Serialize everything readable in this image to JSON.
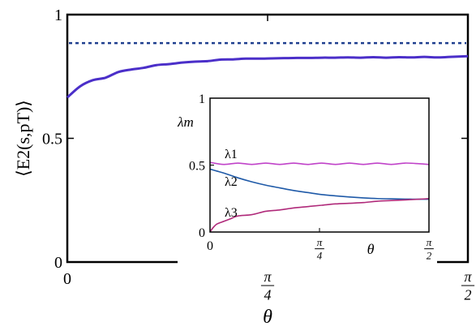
{
  "chart_data": [
    {
      "type": "line",
      "xlabel": "θ",
      "ylabel": "⟨E2(s,pT)⟩",
      "xlim": [
        0,
        1.5708
      ],
      "ylim": [
        0,
        1
      ],
      "xticks": [
        {
          "value": 0,
          "label": "0"
        },
        {
          "value": 0.7854,
          "num": "π",
          "den": "4"
        },
        {
          "value": 1.5708,
          "num": "π",
          "den": "2"
        }
      ],
      "yticks": [
        {
          "value": 0,
          "label": "0"
        },
        {
          "value": 0.5,
          "label": "0.5"
        },
        {
          "value": 1,
          "label": "1"
        }
      ],
      "reference_line": {
        "y": 0.885,
        "style": "dashed",
        "color": "#1f3f8f"
      },
      "series": [
        {
          "color": "#4b2fc9",
          "x": [
            0,
            0.05,
            0.1,
            0.15,
            0.2,
            0.25,
            0.3,
            0.35,
            0.4,
            0.45,
            0.5,
            0.55,
            0.6,
            0.65,
            0.7,
            0.75,
            0.8,
            0.85,
            0.9,
            0.95,
            1.0,
            1.05,
            1.1,
            1.15,
            1.2,
            1.25,
            1.3,
            1.35,
            1.4,
            1.45,
            1.5,
            1.5708
          ],
          "y": [
            0.665,
            0.71,
            0.735,
            0.745,
            0.768,
            0.778,
            0.785,
            0.796,
            0.8,
            0.806,
            0.81,
            0.812,
            0.818,
            0.819,
            0.822,
            0.822,
            0.823,
            0.824,
            0.825,
            0.825,
            0.826,
            0.826,
            0.827,
            0.826,
            0.828,
            0.826,
            0.828,
            0.827,
            0.829,
            0.827,
            0.829,
            0.832
          ]
        }
      ]
    },
    {
      "type": "line",
      "xlabel": "θ",
      "ylabel": "λm",
      "xlim": [
        0,
        1.5708
      ],
      "ylim": [
        0,
        1
      ],
      "xticks": [
        {
          "value": 0,
          "label": "0"
        },
        {
          "value": 0.7854,
          "num": "π",
          "den": "4"
        },
        {
          "value": 1.5708,
          "num": "π",
          "den": "2"
        }
      ],
      "yticks": [
        {
          "value": 0,
          "label": "0"
        },
        {
          "value": 0.5,
          "label": "0.5"
        },
        {
          "value": 1,
          "label": "1"
        }
      ],
      "series": [
        {
          "name": "λ1",
          "color": "#c043c9",
          "x": [
            0,
            0.1,
            0.2,
            0.3,
            0.4,
            0.5,
            0.6,
            0.7,
            0.8,
            0.9,
            1.0,
            1.1,
            1.2,
            1.3,
            1.4,
            1.5,
            1.5708
          ],
          "y": [
            0.52,
            0.505,
            0.515,
            0.505,
            0.515,
            0.505,
            0.515,
            0.505,
            0.515,
            0.505,
            0.515,
            0.505,
            0.515,
            0.505,
            0.515,
            0.51,
            0.505
          ]
        },
        {
          "name": "λ2",
          "color": "#1f5aa8",
          "x": [
            0,
            0.05,
            0.1,
            0.2,
            0.3,
            0.4,
            0.5,
            0.6,
            0.7,
            0.8,
            0.9,
            1.0,
            1.1,
            1.2,
            1.3,
            1.4,
            1.5,
            1.5708
          ],
          "y": [
            0.47,
            0.455,
            0.44,
            0.405,
            0.375,
            0.35,
            0.33,
            0.31,
            0.295,
            0.28,
            0.27,
            0.262,
            0.255,
            0.25,
            0.248,
            0.246,
            0.245,
            0.245
          ]
        },
        {
          "name": "λ3",
          "color": "#b02a7a",
          "x": [
            0,
            0.02,
            0.05,
            0.1,
            0.15,
            0.2,
            0.3,
            0.4,
            0.5,
            0.6,
            0.7,
            0.8,
            0.9,
            1.0,
            1.1,
            1.2,
            1.3,
            1.4,
            1.5,
            1.5708
          ],
          "y": [
            0.0,
            0.03,
            0.06,
            0.08,
            0.1,
            0.12,
            0.13,
            0.155,
            0.165,
            0.18,
            0.19,
            0.2,
            0.21,
            0.215,
            0.22,
            0.23,
            0.235,
            0.24,
            0.245,
            0.25
          ]
        }
      ]
    }
  ]
}
